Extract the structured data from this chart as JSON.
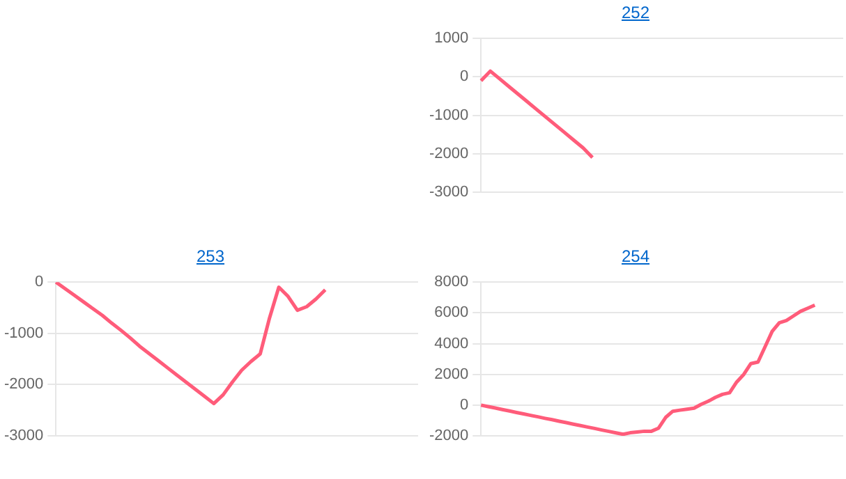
{
  "chart_data": [
    {
      "type": "line",
      "title": "252",
      "categories": [
        null,
        null,
        null,
        null,
        null,
        null,
        null,
        null,
        null,
        null,
        null,
        null,
        null,
        null,
        null,
        null,
        null,
        null,
        null,
        null,
        null,
        null,
        null,
        null,
        null,
        null,
        null,
        null,
        null,
        null,
        null,
        null,
        null,
        null,
        null,
        null,
        null,
        null,
        null,
        null
      ],
      "series": [
        {
          "color": "#ff5c7a",
          "values": [
            -100,
            150,
            -50,
            -250,
            -450,
            -650,
            -850,
            -1050,
            -1250,
            -1450,
            -1650,
            -1850,
            -2100,
            null,
            null,
            null,
            null,
            null,
            null,
            null,
            null,
            null,
            null,
            null,
            null,
            null,
            null,
            null,
            null,
            null,
            null,
            null,
            null,
            null,
            null,
            null,
            null,
            null,
            null,
            null
          ]
        }
      ],
      "ylim": [
        -3000,
        1000
      ],
      "yticks": [
        -3000,
        -2000,
        -1000,
        0,
        1000
      ],
      "grid": "y",
      "tick_labels": "y"
    },
    {
      "type": "line",
      "title": "253",
      "categories": [
        null,
        null,
        null,
        null,
        null,
        null,
        null,
        null,
        null,
        null,
        null,
        null,
        null,
        null,
        null,
        null,
        null,
        null,
        null,
        null,
        null,
        null,
        null,
        null,
        null,
        null,
        null,
        null,
        null,
        null,
        null,
        null,
        null,
        null,
        null,
        null,
        null,
        null,
        null,
        null
      ],
      "series": [
        {
          "color": "#ff5c7a",
          "values": [
            0,
            -130,
            -260,
            -390,
            -520,
            -650,
            -800,
            -940,
            -1090,
            -1250,
            -1390,
            -1530,
            -1670,
            -1810,
            -1950,
            -2090,
            -2230,
            -2370,
            -2200,
            -1950,
            -1720,
            -1550,
            -1400,
            -700,
            -100,
            -280,
            -550,
            -480,
            -330,
            -150,
            null,
            null,
            null,
            null,
            null,
            null,
            null,
            null,
            null,
            null
          ]
        }
      ],
      "ylim": [
        -3000,
        0
      ],
      "yticks": [
        -3000,
        -2000,
        -1000,
        0
      ],
      "grid": "y",
      "tick_labels": "y"
    },
    {
      "type": "line",
      "title": "254",
      "categories": [
        null,
        null,
        null,
        null,
        null,
        null,
        null,
        null,
        null,
        null,
        null,
        null,
        null,
        null,
        null,
        null,
        null,
        null,
        null,
        null,
        null,
        null,
        null,
        null,
        null,
        null,
        null,
        null,
        null,
        null,
        null,
        null,
        null,
        null,
        null,
        null,
        null,
        null,
        null,
        null,
        null,
        null,
        null,
        null,
        null,
        null,
        null,
        null,
        null,
        null,
        null,
        null
      ],
      "series": [
        {
          "color": "#ff5c7a",
          "values": [
            0,
            -100,
            -190,
            -290,
            -380,
            -480,
            -570,
            -670,
            -760,
            -860,
            -950,
            -1050,
            -1140,
            -1240,
            -1330,
            -1430,
            -1520,
            -1620,
            -1710,
            -1810,
            -1900,
            -1800,
            -1750,
            -1700,
            -1700,
            -1500,
            -800,
            -400,
            -330,
            -270,
            -200,
            50,
            250,
            500,
            700,
            800,
            1500,
            2000,
            2700,
            2800,
            3800,
            4800,
            5350,
            5500,
            5800,
            6100,
            6300,
            6500,
            null,
            null,
            null,
            null
          ]
        }
      ],
      "ylim": [
        -2000,
        8000
      ],
      "yticks": [
        -2000,
        0,
        2000,
        4000,
        6000,
        8000
      ],
      "grid": "y",
      "tick_labels": "y"
    }
  ]
}
